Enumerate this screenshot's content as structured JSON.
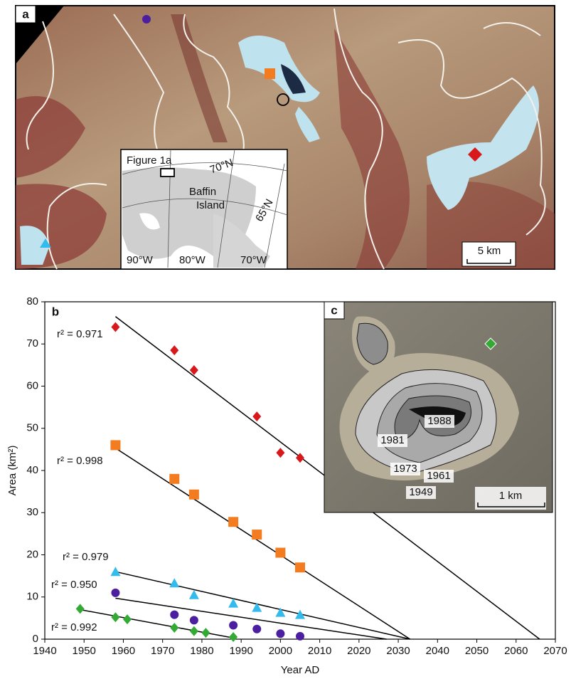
{
  "chart_data": {
    "type": "scatter",
    "panel_labels": [
      "a",
      "b",
      "c"
    ],
    "map": {
      "inset_title": "Figure 1a",
      "lat_labels": [
        "70°N",
        "65°N"
      ],
      "place": [
        "Baffin",
        "Island"
      ],
      "lon_labels": [
        "90°W",
        "80°W",
        "70°W"
      ],
      "scale": "5 km"
    },
    "photo": {
      "contour_years": [
        "1988",
        "1981",
        "1973",
        "1961",
        "1949"
      ],
      "scale": "1 km"
    },
    "xlabel": "Year AD",
    "ylabel": "Area (km²)",
    "xlim": [
      1940,
      2070
    ],
    "xticks": [
      1940,
      1950,
      1960,
      1970,
      1980,
      1990,
      2000,
      2010,
      2020,
      2030,
      2040,
      2050,
      2060,
      2070
    ],
    "ylim": [
      0,
      80
    ],
    "yticks": [
      0,
      10,
      20,
      30,
      40,
      50,
      60,
      70,
      80
    ],
    "series": [
      {
        "marker": "diamond",
        "color": "#d7191c",
        "r2_label": "r² = 0.971",
        "x": [
          1958,
          1973,
          1978,
          1994,
          2000,
          2005
        ],
        "values": [
          74,
          68.5,
          63.8,
          52.8,
          44.2,
          43
        ],
        "fit": {
          "x": [
            1958,
            2066
          ],
          "y": [
            76.5,
            0
          ]
        }
      },
      {
        "marker": "square",
        "color": "#f47c20",
        "r2_label": "r² = 0.998",
        "x": [
          1958,
          1973,
          1978,
          1988,
          1994,
          2000,
          2005
        ],
        "values": [
          46,
          38,
          34.3,
          27.8,
          24.8,
          20.5,
          17
        ],
        "fit": {
          "x": [
            1958,
            2033
          ],
          "y": [
            45.3,
            0
          ]
        }
      },
      {
        "marker": "triangle",
        "color": "#33bbee",
        "r2_label": "r² = 0.979",
        "x": [
          1958,
          1973,
          1978,
          1988,
          1994,
          2000,
          2005
        ],
        "values": [
          16,
          13.3,
          10.5,
          8.5,
          7.5,
          6.3,
          5.8
        ],
        "fit": {
          "x": [
            1958,
            2033
          ],
          "y": [
            16,
            0
          ]
        }
      },
      {
        "marker": "circle",
        "color": "#4b1fa0",
        "r2_label": "r² = 0.950",
        "x": [
          1958,
          1973,
          1978,
          1988,
          1994,
          2000,
          2005
        ],
        "values": [
          11,
          5.8,
          4.5,
          3.3,
          2.4,
          1.3,
          0.7
        ],
        "fit": {
          "x": [
            1958,
            2027
          ],
          "y": [
            9.7,
            0
          ]
        }
      },
      {
        "marker": "diamond",
        "color": "#33aa33",
        "r2_label": "r² = 0.992",
        "x": [
          1949,
          1958,
          1961,
          1973,
          1978,
          1981,
          1988
        ],
        "values": [
          7.2,
          5.2,
          4.7,
          2.7,
          1.9,
          1.5,
          0.5
        ],
        "fit": {
          "x": [
            1949,
            1988
          ],
          "y": [
            7,
            0.3
          ]
        }
      }
    ]
  }
}
